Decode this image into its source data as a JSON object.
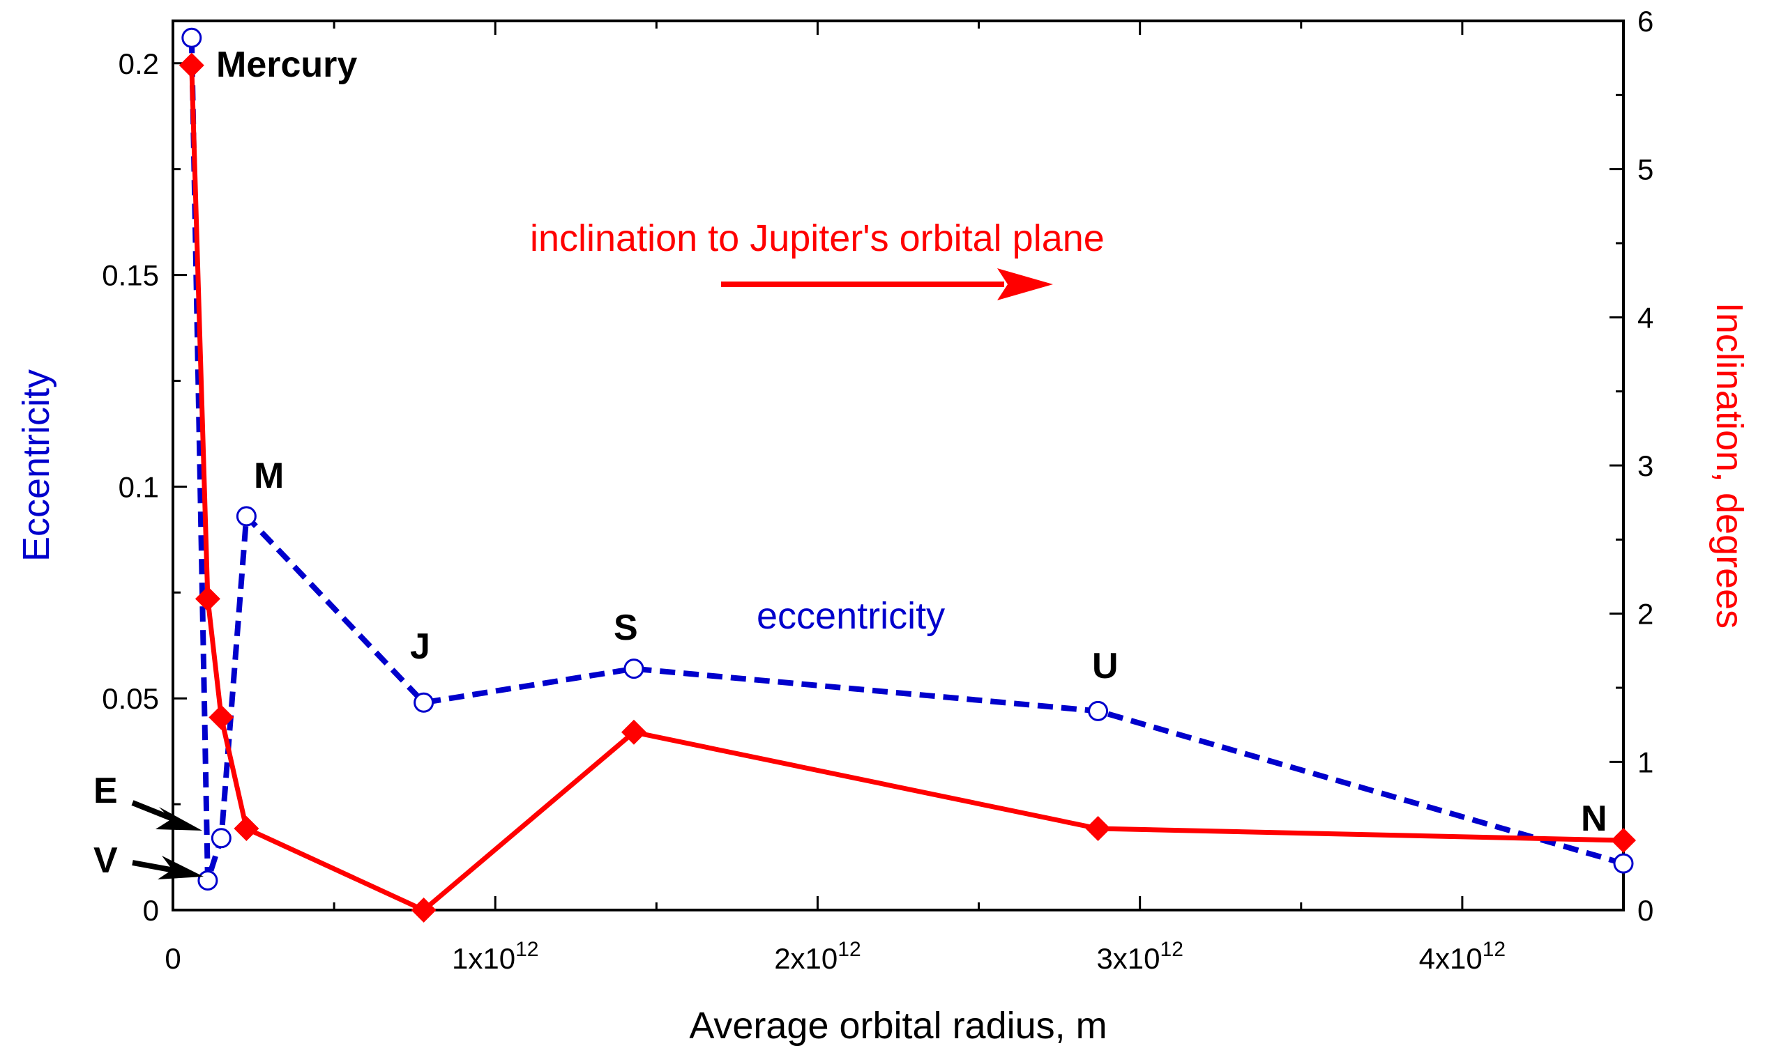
{
  "chart_data": {
    "type": "line",
    "xlabel": "Average orbital radius, m",
    "ylabel_left": "Eccentricity",
    "ylabel_right": "Inclination, degrees",
    "xlim": [
      0,
      4500000000000.0
    ],
    "ylim_left": [
      0,
      0.21
    ],
    "ylim_right": [
      0,
      6
    ],
    "x_ticks": [
      {
        "value": 0,
        "label": "0",
        "mantissa": "0",
        "exponent": ""
      },
      {
        "value": 1000000000000.0,
        "label": "1x10^12",
        "mantissa": "1x10",
        "exponent": "12"
      },
      {
        "value": 2000000000000.0,
        "label": "2x10^12",
        "mantissa": "2x10",
        "exponent": "12"
      },
      {
        "value": 3000000000000.0,
        "label": "3x10^12",
        "mantissa": "3x10",
        "exponent": "12"
      },
      {
        "value": 4000000000000.0,
        "label": "4x10^12",
        "mantissa": "4x10",
        "exponent": "12"
      }
    ],
    "y_left_ticks": [
      {
        "value": 0,
        "label": "0"
      },
      {
        "value": 0.05,
        "label": "0.05"
      },
      {
        "value": 0.1,
        "label": "0.1"
      },
      {
        "value": 0.15,
        "label": "0.15"
      },
      {
        "value": 0.2,
        "label": "0.2"
      }
    ],
    "y_right_ticks": [
      {
        "value": 0,
        "label": "0"
      },
      {
        "value": 1,
        "label": "1"
      },
      {
        "value": 2,
        "label": "2"
      },
      {
        "value": 3,
        "label": "3"
      },
      {
        "value": 4,
        "label": "4"
      },
      {
        "value": 5,
        "label": "5"
      },
      {
        "value": 6,
        "label": "6"
      }
    ],
    "series": [
      {
        "name": "eccentricity",
        "axis": "left",
        "color": "#0000cc",
        "style": "dashed",
        "marker": "open-circle",
        "x": [
          58000000000.0,
          108000000000.0,
          150000000000.0,
          228000000000.0,
          778000000000.0,
          1430000000000.0,
          2870000000000.0,
          4500000000000.0
        ],
        "values": [
          0.206,
          0.007,
          0.017,
          0.093,
          0.049,
          0.057,
          0.047,
          0.011
        ]
      },
      {
        "name": "inclination",
        "axis": "right",
        "color": "#ff0000",
        "style": "solid",
        "marker": "filled-diamond",
        "x": [
          58000000000.0,
          108000000000.0,
          150000000000.0,
          228000000000.0,
          778000000000.0,
          1430000000000.0,
          2870000000000.0,
          4500000000000.0
        ],
        "values": [
          5.7,
          2.1,
          1.3,
          0.55,
          0.0,
          1.2,
          0.55,
          0.47
        ]
      }
    ],
    "planet_labels": [
      {
        "text": "Mercury",
        "x": 58000000000.0
      },
      {
        "text": "M",
        "x": 228000000000.0
      },
      {
        "text": "J",
        "x": 778000000000.0
      },
      {
        "text": "S",
        "x": 1430000000000.0
      },
      {
        "text": "U",
        "x": 2870000000000.0
      },
      {
        "text": "N",
        "x": 4500000000000.0
      },
      {
        "text": "E",
        "x": 0
      },
      {
        "text": "V",
        "x": 0
      }
    ],
    "annotations": {
      "inclination_note": "inclination to Jupiter's orbital plane",
      "eccentricity_note": "eccentricity"
    },
    "colors": {
      "eccentricity": "#0000cc",
      "inclination": "#ff0000",
      "axis": "#000000"
    }
  }
}
